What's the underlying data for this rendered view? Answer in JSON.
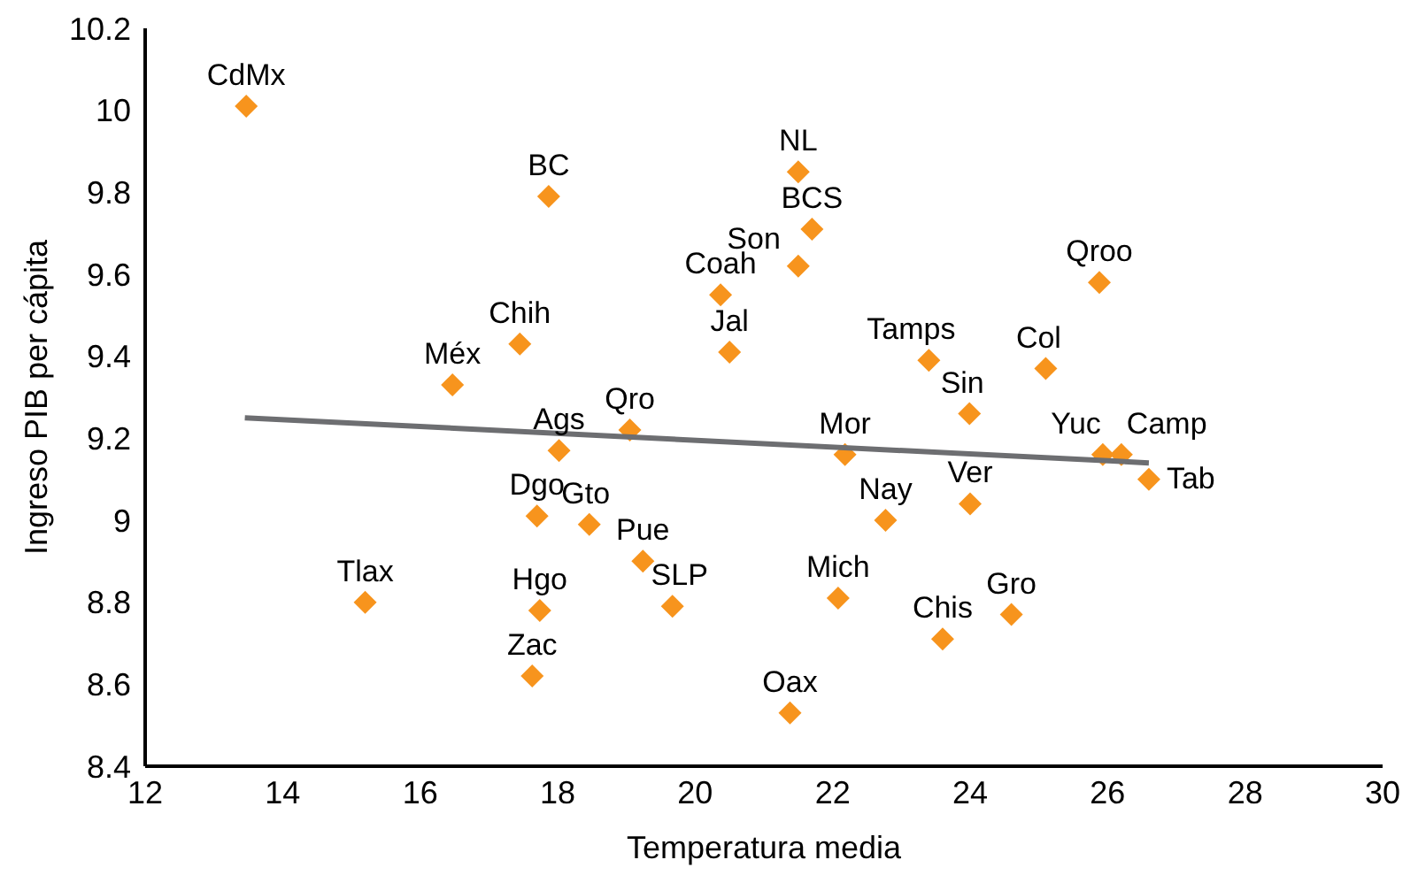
{
  "chart_data": {
    "type": "scatter",
    "xlabel": "Temperatura media",
    "ylabel": "Ingreso PIB per cápita",
    "xlim": [
      12,
      30
    ],
    "xticks": [
      12,
      14,
      16,
      18,
      20,
      22,
      24,
      26,
      28,
      30
    ],
    "ylim": [
      8.4,
      10.2
    ],
    "yticks": [
      8.4,
      8.6,
      8.8,
      9,
      9.2,
      9.4,
      9.6,
      9.8,
      10,
      10.2
    ],
    "grid": false,
    "legend": false,
    "marker": "diamond",
    "series": [
      {
        "type": "scatter",
        "color": "#f7941d",
        "x": [
          13.47,
          17.87,
          17.45,
          16.47,
          20.37,
          20.5,
          19.05,
          18.02,
          21.5,
          21.7,
          21.5,
          25.88,
          23.4,
          25.1,
          23.99,
          22.18,
          25.93,
          26.2,
          26.6,
          24.0,
          22.77,
          22.08,
          24.6,
          23.6,
          21.38,
          15.2,
          17.74,
          17.63,
          17.7,
          18.46,
          19.24,
          19.67
        ],
        "values": [
          10.01,
          9.79,
          9.43,
          9.33,
          9.55,
          9.41,
          9.22,
          9.17,
          9.85,
          9.71,
          9.62,
          9.58,
          9.39,
          9.37,
          9.26,
          9.16,
          9.16,
          9.16,
          9.1,
          9.04,
          9.0,
          8.81,
          8.77,
          8.71,
          8.53,
          8.8,
          8.78,
          8.62,
          9.01,
          8.99,
          8.9,
          8.79
        ]
      },
      {
        "type": "line",
        "color": "#6d6e71",
        "x": [
          13.45,
          26.6
        ],
        "values": [
          9.25,
          9.14
        ],
        "marker": "none"
      }
    ],
    "annotations": [
      {
        "text": "CdMx",
        "x": 13.47,
        "y": 10.01
      },
      {
        "text": "BC",
        "x": 17.87,
        "y": 9.79
      },
      {
        "text": "Chih",
        "x": 17.45,
        "y": 9.43
      },
      {
        "text": "Méx",
        "x": 16.47,
        "y": 9.33
      },
      {
        "text": "Coah",
        "x": 20.37,
        "y": 9.55
      },
      {
        "text": "Jal",
        "x": 20.5,
        "y": 9.41
      },
      {
        "text": "Qro",
        "x": 19.05,
        "y": 9.22
      },
      {
        "text": "Ags",
        "x": 18.02,
        "y": 9.17
      },
      {
        "text": "NL",
        "x": 21.5,
        "y": 9.85
      },
      {
        "text": "BCS",
        "x": 21.7,
        "y": 9.71
      },
      {
        "text": "Son",
        "x": 21.5,
        "y": 9.62
      },
      {
        "text": "Qroo",
        "x": 25.88,
        "y": 9.58
      },
      {
        "text": "Tamps",
        "x": 23.4,
        "y": 9.39
      },
      {
        "text": "Col",
        "x": 25.1,
        "y": 9.37
      },
      {
        "text": "Sin",
        "x": 23.99,
        "y": 9.26
      },
      {
        "text": "Mor",
        "x": 22.18,
        "y": 9.16
      },
      {
        "text": "Yuc",
        "x": 25.93,
        "y": 9.16
      },
      {
        "text": "Camp",
        "x": 26.2,
        "y": 9.16
      },
      {
        "text": "Tab",
        "x": 26.6,
        "y": 9.1
      },
      {
        "text": "Ver",
        "x": 24.0,
        "y": 9.04
      },
      {
        "text": "Nay",
        "x": 22.77,
        "y": 9.0
      },
      {
        "text": "Mich",
        "x": 22.08,
        "y": 8.81
      },
      {
        "text": "Gro",
        "x": 24.6,
        "y": 8.77
      },
      {
        "text": "Chis",
        "x": 23.6,
        "y": 8.71
      },
      {
        "text": "Oax",
        "x": 21.38,
        "y": 8.53
      },
      {
        "text": "Tlax",
        "x": 15.2,
        "y": 8.8
      },
      {
        "text": "Hgo",
        "x": 17.74,
        "y": 8.78
      },
      {
        "text": "Zac",
        "x": 17.63,
        "y": 8.62
      },
      {
        "text": "Dgo",
        "x": 17.7,
        "y": 9.01
      },
      {
        "text": "Gto",
        "x": 18.46,
        "y": 8.99
      },
      {
        "text": "Pue",
        "x": 19.24,
        "y": 8.9
      },
      {
        "text": "SLP",
        "x": 19.67,
        "y": 8.79
      }
    ]
  }
}
